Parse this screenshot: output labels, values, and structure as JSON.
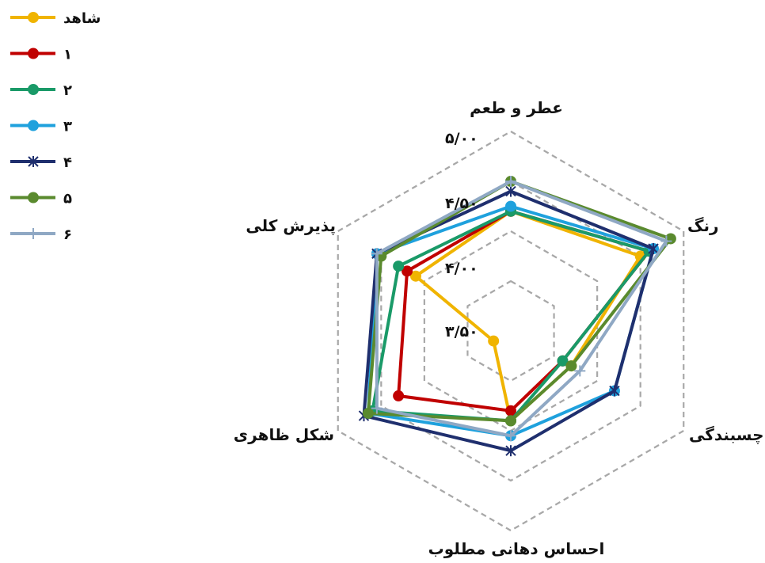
{
  "chart_data": {
    "type": "radar",
    "axes": [
      "عطر و طعم",
      "رنگ",
      "چسبندگی",
      "احساس دهانی مطلوب",
      "شکل ظاهری",
      "پذیرش کلی"
    ],
    "range": [
      3.0,
      5.0
    ],
    "ticks": [
      3.5,
      4.0,
      4.5,
      5.0
    ],
    "tick_labels": [
      "۳/۵۰",
      "۴/۰۰",
      "۴/۵۰",
      "۵/۰۰"
    ],
    "grid": true,
    "legend_position": "top-left",
    "series": [
      {
        "name": "شاهد",
        "color": "#f0b400",
        "marker": "circle",
        "values": [
          4.2,
          4.5,
          3.7,
          3.9,
          3.2,
          4.1
        ]
      },
      {
        "name": "۱",
        "color": "#c00000",
        "marker": "circle",
        "values": [
          4.2,
          4.6,
          3.6,
          3.8,
          4.3,
          4.2
        ]
      },
      {
        "name": "۲",
        "color": "#1a9a68",
        "marker": "circle",
        "values": [
          4.2,
          4.6,
          3.6,
          3.9,
          4.6,
          4.3
        ]
      },
      {
        "name": "۳",
        "color": "#1fa1dd",
        "marker": "circle",
        "values": [
          4.25,
          4.65,
          4.2,
          4.05,
          4.65,
          4.55
        ]
      },
      {
        "name": "۴",
        "color": "#1f2f6e",
        "marker": "x",
        "values": [
          4.4,
          4.65,
          4.2,
          4.2,
          4.7,
          4.55
        ]
      },
      {
        "name": "۵",
        "color": "#5a8a2e",
        "marker": "circle",
        "values": [
          4.5,
          4.85,
          3.7,
          3.9,
          4.65,
          4.5
        ]
      },
      {
        "name": "۶",
        "color": "#8fa8c4",
        "marker": "plus",
        "values": [
          4.5,
          4.8,
          3.8,
          4.05,
          4.55,
          4.55
        ]
      }
    ]
  }
}
